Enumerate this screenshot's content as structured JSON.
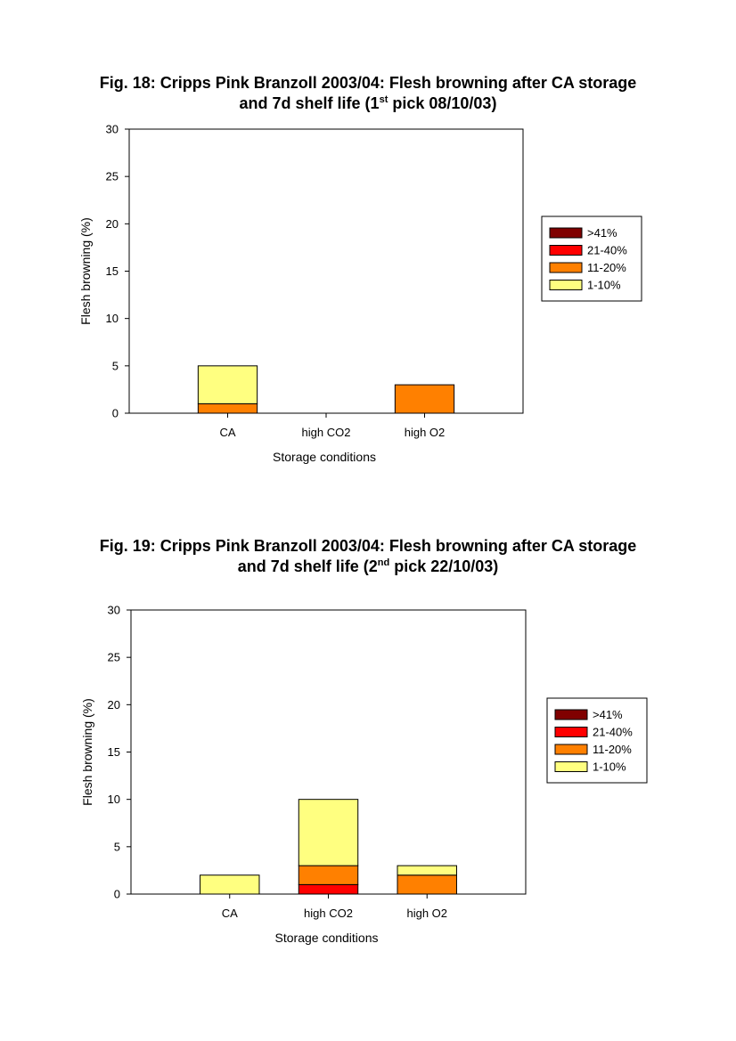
{
  "colors": {
    "gt41": "#800000",
    "r21_40": "#ff0000",
    "r11_20": "#ff8000",
    "r1_10": "#ffff80",
    "axis": "#000000"
  },
  "chart_data": [
    {
      "type": "bar",
      "stacked": true,
      "title": {
        "prefix": "Fig. 18: Cripps Pink Branzoll 2003/04: Flesh browning after CA storage",
        "line2_before": "and 7d shelf life (1",
        "line2_sup": "st",
        "line2_after": " pick 08/10/03)"
      },
      "xlabel": "Storage conditions",
      "ylabel": "Flesh browning (%)",
      "ylim": [
        0,
        30
      ],
      "yticks": [
        "0",
        "5",
        "10",
        "15",
        "20",
        "25",
        "30"
      ],
      "categories": [
        "CA",
        "high CO2",
        "high O2"
      ],
      "legend_position": "right",
      "series": [
        {
          "name": ">41%",
          "color_key": "gt41",
          "values": [
            0,
            0,
            0
          ]
        },
        {
          "name": "21-40%",
          "color_key": "r21_40",
          "values": [
            0,
            0,
            0
          ]
        },
        {
          "name": "11-20%",
          "color_key": "r11_20",
          "values": [
            1,
            0,
            3
          ]
        },
        {
          "name": "1-10%",
          "color_key": "r1_10",
          "values": [
            4,
            0,
            0
          ]
        }
      ]
    },
    {
      "type": "bar",
      "stacked": true,
      "title": {
        "prefix": "Fig. 19: Cripps Pink Branzoll 2003/04: Flesh browning after CA storage",
        "line2_before": "and 7d shelf life (2",
        "line2_sup": "nd",
        "line2_after": " pick 22/10/03)"
      },
      "xlabel": "Storage conditions",
      "ylabel": "Flesh browning (%)",
      "ylim": [
        0,
        30
      ],
      "yticks": [
        "0",
        "5",
        "10",
        "15",
        "20",
        "25",
        "30"
      ],
      "categories": [
        "CA",
        "high CO2",
        "high O2"
      ],
      "legend_position": "right",
      "series": [
        {
          "name": ">41%",
          "color_key": "gt41",
          "values": [
            0,
            0,
            0
          ]
        },
        {
          "name": "21-40%",
          "color_key": "r21_40",
          "values": [
            0,
            1,
            0
          ]
        },
        {
          "name": "11-20%",
          "color_key": "r11_20",
          "values": [
            0,
            2,
            2
          ]
        },
        {
          "name": "1-10%",
          "color_key": "r1_10",
          "values": [
            2,
            7,
            1
          ]
        }
      ]
    }
  ]
}
